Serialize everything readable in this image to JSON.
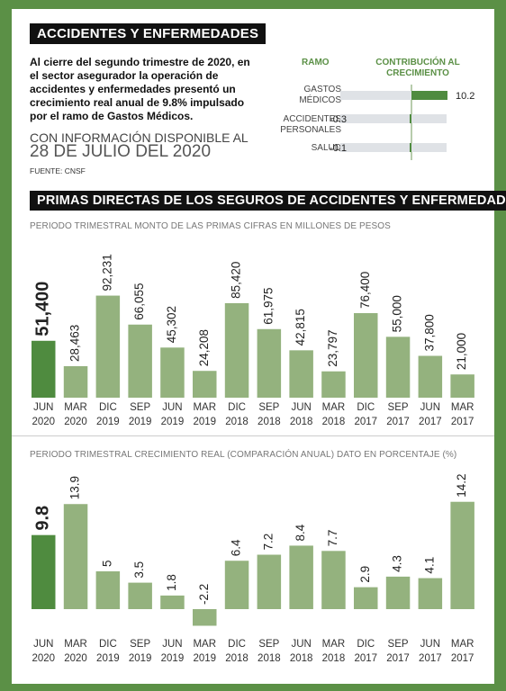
{
  "header1": "Accidentes y enfermedades",
  "intro": "Al cierre del segundo trimestre de 2020, en el sector asegurador la operación de accidentes y enfermedades presentó un crecimiento real anual de 9.8% impulsado por el ramo de Gastos Médicos.",
  "availability": {
    "text": "Con información disponible al",
    "date": "28 de julio del 2020"
  },
  "source": "FUENTE: CNSF",
  "header2": "Primas directas de los seguros de accidentes y enfermedades",
  "subtitle1": "Periodo trimestral   Monto de las primas   Cifras en millones de pesos",
  "subtitle2": "Periodo trimestral   Crecimiento real (comparación anual)   Dato en porcentaje (%)",
  "colors": {
    "frame": "#5b9046",
    "bar": "#94b27e",
    "highlight": "#4f8b3f",
    "track": "#dfe2e6"
  },
  "chart_data": [
    {
      "type": "bar",
      "orientation": "horizontal",
      "column_headers": [
        "Ramo",
        "Contribución al crecimiento"
      ],
      "categories": [
        "Gastos médicos",
        "Accidentes personales",
        "Salud"
      ],
      "values": [
        10.2,
        -0.3,
        -0.1
      ],
      "value_labels": [
        "10.2",
        "-0.3",
        "-0.1"
      ]
    },
    {
      "type": "bar",
      "categories": [
        [
          "JUN",
          "2020"
        ],
        [
          "MAR",
          "2020"
        ],
        [
          "DIC",
          "2019"
        ],
        [
          "SEP",
          "2019"
        ],
        [
          "JUN",
          "2019"
        ],
        [
          "MAR",
          "2019"
        ],
        [
          "DIC",
          "2018"
        ],
        [
          "SEP",
          "2018"
        ],
        [
          "JUN",
          "2018"
        ],
        [
          "MAR",
          "2018"
        ],
        [
          "DIC",
          "2017"
        ],
        [
          "SEP",
          "2017"
        ],
        [
          "JUN",
          "2017"
        ],
        [
          "MAR",
          "2017"
        ]
      ],
      "values": [
        51400,
        28463,
        92231,
        66055,
        45302,
        24208,
        85420,
        61975,
        42815,
        23797,
        76400,
        55000,
        37800,
        21000
      ],
      "value_labels": [
        "51,400",
        "28,463",
        "92,231",
        "66,055",
        "45,302",
        "24,208",
        "85,420",
        "61,975",
        "42,815",
        "23,797",
        "76,400",
        "55,000",
        "37,800",
        "21,000"
      ],
      "highlight_index": 0
    },
    {
      "type": "bar",
      "categories": [
        [
          "JUN",
          "2020"
        ],
        [
          "MAR",
          "2020"
        ],
        [
          "DIC",
          "2019"
        ],
        [
          "SEP",
          "2019"
        ],
        [
          "JUN",
          "2019"
        ],
        [
          "MAR",
          "2019"
        ],
        [
          "DIC",
          "2018"
        ],
        [
          "SEP",
          "2018"
        ],
        [
          "JUN",
          "2018"
        ],
        [
          "MAR",
          "2018"
        ],
        [
          "DIC",
          "2017"
        ],
        [
          "SEP",
          "2017"
        ],
        [
          "JUN",
          "2017"
        ],
        [
          "MAR",
          "2017"
        ]
      ],
      "values": [
        9.8,
        13.9,
        5,
        3.5,
        1.8,
        -2.2,
        6.4,
        7.2,
        8.4,
        7.7,
        2.9,
        4.3,
        4.1,
        14.2
      ],
      "value_labels": [
        "9.8",
        "13.9",
        "5",
        "3.5",
        "1.8",
        "-2.2",
        "6.4",
        "7.2",
        "8.4",
        "7.7",
        "2.9",
        "4.3",
        "4.1",
        "14.2"
      ],
      "highlight_index": 0
    }
  ]
}
